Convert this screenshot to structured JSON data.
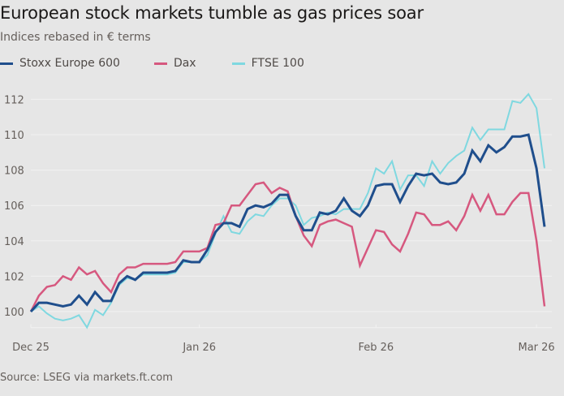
{
  "title": "European stock markets tumble as gas prices soar",
  "subtitle": "Indices rebased in € terms",
  "source": "Source: LSEG via markets.ft.com",
  "chart_data": {
    "type": "line",
    "title": "European stock markets tumble as gas prices soar",
    "subtitle": "Indices rebased in € terms",
    "xlabel": "",
    "ylabel": "",
    "ylim": [
      99,
      112.5
    ],
    "yticks": [
      100,
      102,
      104,
      106,
      108,
      110,
      112
    ],
    "xticks": [
      {
        "label": "Dec 25",
        "index": 0
      },
      {
        "label": "Jan 26",
        "index": 21
      },
      {
        "label": "Feb 26",
        "index": 43
      },
      {
        "label": "Mar 26",
        "index": 63
      }
    ],
    "grid": true,
    "legend": "top-left",
    "n_points": 65,
    "series": [
      {
        "name": "Stoxx Europe 600",
        "color": "#1f4e8c",
        "values": [
          100.0,
          100.5,
          100.5,
          100.4,
          100.3,
          100.4,
          100.9,
          100.4,
          101.1,
          100.6,
          100.6,
          101.6,
          102.0,
          101.8,
          102.2,
          102.2,
          102.2,
          102.2,
          102.3,
          102.9,
          102.8,
          102.8,
          103.5,
          104.5,
          105.0,
          105.0,
          104.8,
          105.8,
          106.0,
          105.9,
          106.1,
          106.6,
          106.6,
          105.4,
          104.6,
          104.6,
          105.6,
          105.5,
          105.7,
          106.4,
          105.7,
          105.4,
          106.0,
          107.1,
          107.2,
          107.2,
          106.2,
          107.1,
          107.8,
          107.7,
          107.8,
          107.3,
          107.2,
          107.3,
          107.8,
          109.1,
          108.5,
          109.4,
          109.0,
          109.3,
          109.9,
          109.9,
          110.0,
          108.1,
          104.8
        ]
      },
      {
        "name": "Dax",
        "color": "#d6587f",
        "values": [
          100.0,
          100.9,
          101.4,
          101.5,
          102.0,
          101.8,
          102.5,
          102.1,
          102.3,
          101.6,
          101.1,
          102.1,
          102.5,
          102.5,
          102.7,
          102.7,
          102.7,
          102.7,
          102.8,
          103.4,
          103.4,
          103.4,
          103.6,
          104.9,
          105.0,
          106.0,
          106.0,
          106.6,
          107.2,
          107.3,
          106.7,
          107.0,
          106.8,
          105.4,
          104.3,
          103.7,
          104.9,
          105.1,
          105.2,
          105.0,
          104.8,
          102.6,
          103.6,
          104.6,
          104.5,
          103.8,
          103.4,
          104.4,
          105.6,
          105.5,
          104.9,
          104.9,
          105.1,
          104.6,
          105.4,
          106.6,
          105.7,
          106.6,
          105.5,
          105.5,
          106.2,
          106.7,
          106.7,
          104.0,
          100.3
        ]
      },
      {
        "name": "FTSE 100",
        "color": "#7fd8e0",
        "values": [
          100.0,
          100.3,
          99.9,
          99.6,
          99.5,
          99.6,
          99.8,
          99.1,
          100.1,
          99.8,
          100.5,
          101.5,
          101.9,
          101.8,
          102.1,
          102.1,
          102.1,
          102.1,
          102.2,
          102.8,
          102.8,
          102.8,
          103.2,
          104.4,
          105.4,
          104.5,
          104.4,
          105.1,
          105.5,
          105.4,
          106.0,
          106.4,
          106.4,
          106.0,
          104.9,
          105.3,
          105.4,
          105.6,
          105.5,
          105.8,
          105.8,
          105.8,
          106.7,
          108.1,
          107.8,
          108.5,
          106.9,
          107.7,
          107.7,
          107.1,
          108.5,
          107.8,
          108.4,
          108.8,
          109.1,
          110.4,
          109.7,
          110.3,
          110.3,
          110.3,
          111.9,
          111.8,
          112.3,
          111.5,
          108.1
        ]
      }
    ]
  }
}
